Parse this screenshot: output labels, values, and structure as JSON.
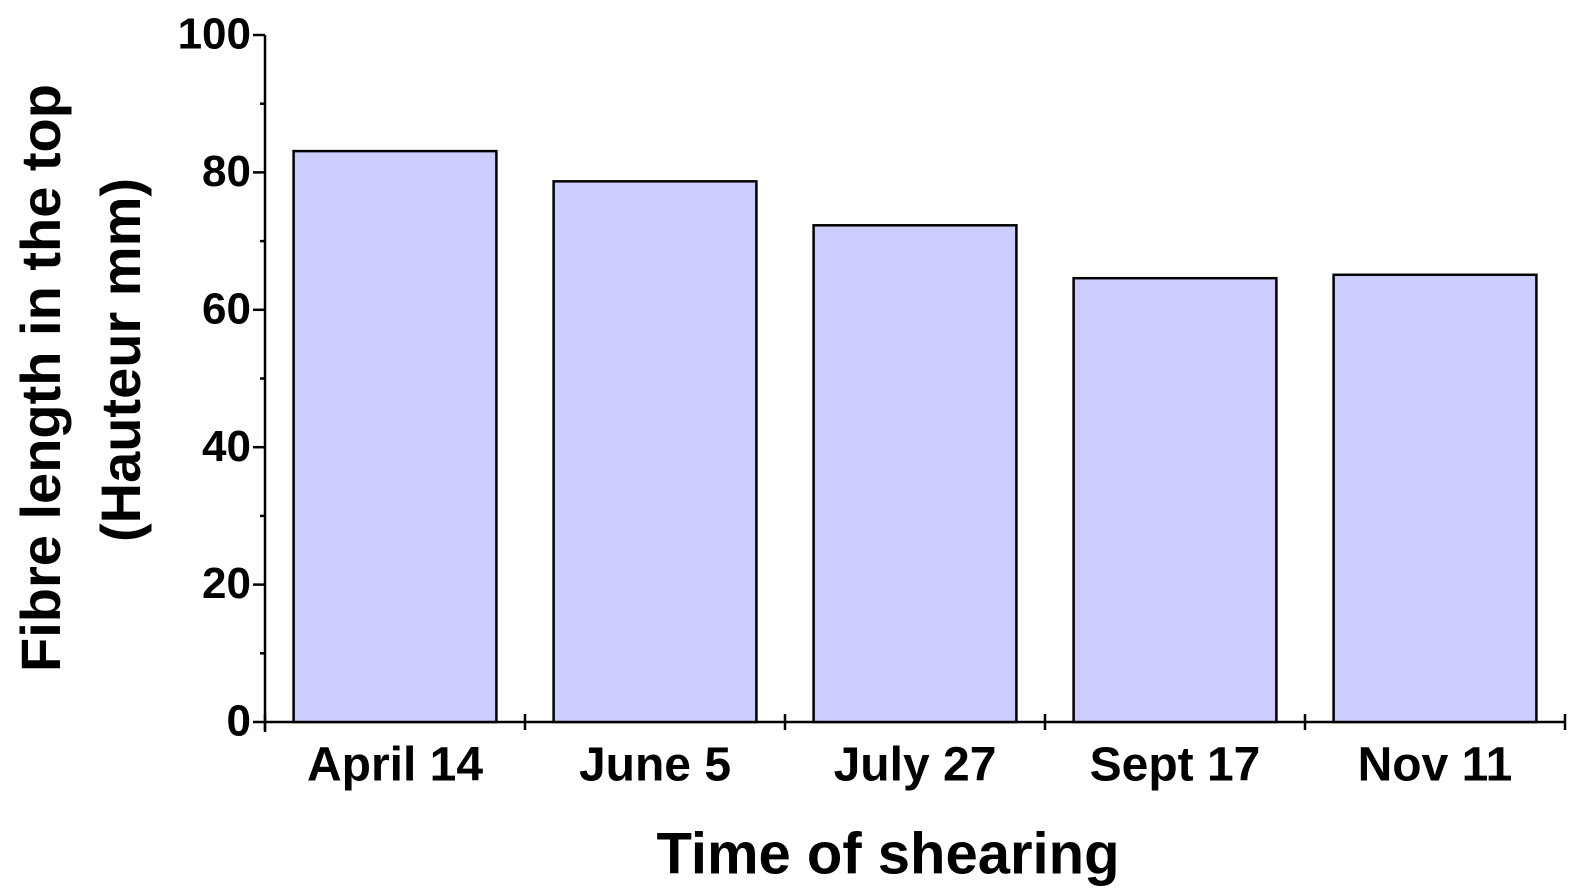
{
  "chart_data": {
    "type": "bar",
    "y_label": [
      "Fibre length in the top",
      "(Hauteur mm)"
    ],
    "x_label": "Time of shearing",
    "categories": [
      "April 14",
      "June 5",
      "July 27",
      "Sept 17",
      "Nov 11"
    ],
    "values": [
      83.1,
      78.7,
      72.3,
      64.6,
      65.1
    ],
    "color": "#ccccff",
    "ylim": [
      0,
      100
    ],
    "yticks": [
      0,
      20,
      40,
      60,
      80,
      100
    ],
    "minor_yticks": [
      10,
      30,
      50,
      70,
      90
    ],
    "grid": false
  }
}
